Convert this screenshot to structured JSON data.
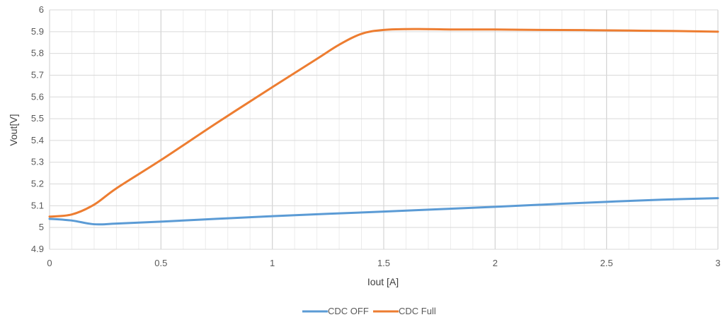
{
  "chart_data": {
    "type": "line",
    "xlabel": "Iout [A]",
    "ylabel": "Vout[V]",
    "xlim": [
      0,
      3
    ],
    "ylim": [
      4.9,
      6
    ],
    "x_ticks": [
      0,
      0.5,
      1,
      1.5,
      2,
      2.5,
      3
    ],
    "x_tick_labels": [
      "0",
      "0.5",
      "1",
      "1.5",
      "2",
      "2.5",
      "3"
    ],
    "x_minor_step": 0.1,
    "y_ticks": [
      4.9,
      5,
      5.1,
      5.2,
      5.3,
      5.4,
      5.5,
      5.6,
      5.7,
      5.8,
      5.9,
      6
    ],
    "y_tick_labels": [
      "4.9",
      "5",
      "5.1",
      "5.2",
      "5.3",
      "5.4",
      "5.5",
      "5.6",
      "5.7",
      "5.8",
      "5.9",
      "6"
    ],
    "grid": true,
    "legend_position": "bottom",
    "series": [
      {
        "name": "CDC OFF",
        "color": "#5B9BD5",
        "x": [
          0,
          0.1,
          0.2,
          0.3,
          0.5,
          0.75,
          1,
          1.25,
          1.5,
          1.75,
          2,
          2.25,
          2.5,
          2.75,
          3
        ],
        "y": [
          5.04,
          5.032,
          5.015,
          5.018,
          5.027,
          5.04,
          5.052,
          5.063,
          5.073,
          5.084,
          5.095,
          5.107,
          5.118,
          5.128,
          5.135
        ]
      },
      {
        "name": "CDC Full",
        "color": "#ED7D31",
        "x": [
          0,
          0.1,
          0.2,
          0.3,
          0.5,
          0.75,
          1,
          1.2,
          1.3,
          1.4,
          1.5,
          1.65,
          1.8,
          2,
          2.2,
          2.4,
          2.6,
          2.8,
          3
        ],
        "y": [
          5.05,
          5.06,
          5.105,
          5.18,
          5.31,
          5.48,
          5.645,
          5.775,
          5.84,
          5.89,
          5.908,
          5.912,
          5.91,
          5.91,
          5.908,
          5.907,
          5.905,
          5.903,
          5.9
        ]
      }
    ]
  }
}
